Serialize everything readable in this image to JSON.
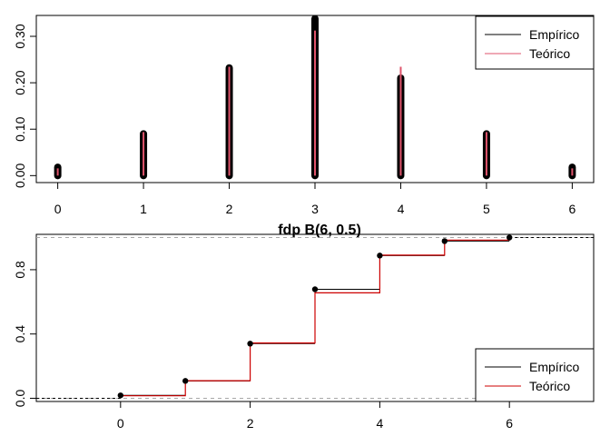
{
  "chart_data": [
    {
      "type": "bar",
      "title": "",
      "xlabel": "",
      "ylabel": "",
      "x": [
        0,
        1,
        2,
        3,
        4,
        5,
        6
      ],
      "xlim": [
        -0.25,
        6.25
      ],
      "ylim": [
        -0.015,
        0.345
      ],
      "xticks": [
        0,
        1,
        2,
        3,
        4,
        5,
        6
      ],
      "yticks": [
        0.0,
        0.1,
        0.2,
        0.3
      ],
      "ytick_labels": [
        "0.00",
        "0.10",
        "0.20",
        "0.30"
      ],
      "series": [
        {
          "name": "Empírico",
          "color": "#000000",
          "values": [
            0.018,
            0.09,
            0.232,
            0.338,
            0.21,
            0.09,
            0.018
          ]
        },
        {
          "name": "Teórico",
          "color": "#DF536B",
          "values": [
            0.0156,
            0.0938,
            0.2344,
            0.3125,
            0.2344,
            0.0938,
            0.0156
          ]
        }
      ],
      "legend": {
        "position": "top-right",
        "entries": [
          "Empírico",
          "Teórico"
        ]
      },
      "grid": false
    },
    {
      "type": "line",
      "step": true,
      "title": "fdp B(6, 0.5)",
      "xlabel": "",
      "ylabel": "",
      "xlim": [
        -1.3,
        7.3
      ],
      "ylim": [
        -0.02,
        1.02
      ],
      "xticks": [
        0,
        2,
        4,
        6
      ],
      "yticks": [
        0.0,
        0.4,
        0.8
      ],
      "ytick_labels": [
        "0.0",
        "0.4",
        "0.8"
      ],
      "reference_lines": [
        0,
        1
      ],
      "series": [
        {
          "name": "Empírico",
          "color": "#000000",
          "x": [
            0,
            1,
            2,
            3,
            4,
            5,
            6
          ],
          "values": [
            0.018,
            0.108,
            0.34,
            0.678,
            0.888,
            0.978,
            1.0
          ]
        },
        {
          "name": "Teórico",
          "color": "#CD0000",
          "x": [
            0,
            1,
            2,
            3,
            4,
            5,
            6
          ],
          "values": [
            0.0156,
            0.1094,
            0.3438,
            0.6563,
            0.8906,
            0.9844,
            1.0
          ]
        }
      ],
      "legend": {
        "position": "bottom-right",
        "entries": [
          "Empírico",
          "Teórico"
        ]
      },
      "grid": false
    }
  ]
}
